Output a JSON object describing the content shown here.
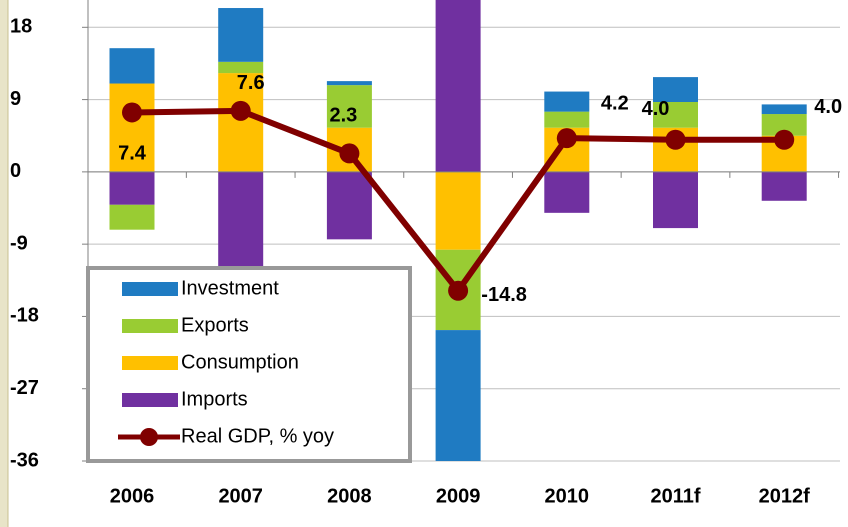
{
  "chart_data": {
    "type": "stacked_bar_line",
    "categories": [
      "2006",
      "2007",
      "2008",
      "2009",
      "2010",
      "2011f",
      "2012f"
    ],
    "series": [
      {
        "name": "Investment",
        "color": "#1f7bc2",
        "values": [
          4.4,
          6.7,
          0.5,
          -16.3,
          2.5,
          3.1,
          1.2
        ]
      },
      {
        "name": "Exports",
        "color": "#99cc33",
        "values": [
          -3.1,
          1.4,
          5.3,
          -10.0,
          2.0,
          3.2,
          2.7
        ]
      },
      {
        "name": "Consumption",
        "color": "#ffc000",
        "values": [
          11.0,
          12.3,
          5.5,
          -9.7,
          5.5,
          5.5,
          4.5
        ]
      },
      {
        "name": "Imports",
        "color": "#7030a0",
        "values": [
          -4.1,
          -13.0,
          -8.4,
          25.0,
          -5.1,
          -7.0,
          -3.6
        ]
      }
    ],
    "line": {
      "name": "Real GDP, % yoy",
      "color": "#800000",
      "values": [
        7.4,
        7.6,
        2.3,
        -14.8,
        4.2,
        4.0,
        4.0
      ],
      "value_labels": [
        "7.4",
        "7.6",
        "2.3",
        "-14.8",
        "4.2",
        "4.0",
        "4.0"
      ]
    },
    "ylim": [
      -36,
      21.4
    ],
    "yticks": [
      18,
      9,
      0,
      -9,
      -18,
      -27,
      -36
    ],
    "grid": true
  }
}
